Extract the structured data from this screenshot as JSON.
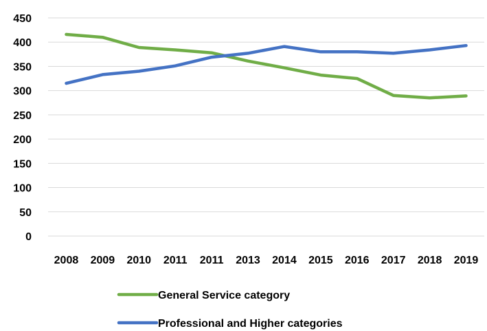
{
  "chart_data": {
    "type": "line",
    "categories": [
      "2008",
      "2009",
      "2010",
      "2011",
      "2011",
      "2013",
      "2014",
      "2015",
      "2016",
      "2017",
      "2018",
      "2019"
    ],
    "series": [
      {
        "name": "General Service category",
        "color": "#70ad47",
        "values": [
          416,
          410,
          389,
          384,
          378,
          361,
          347,
          332,
          325,
          290,
          285,
          289
        ]
      },
      {
        "name": "Professional and Higher categories",
        "color": "#4472c4",
        "values": [
          315,
          333,
          340,
          351,
          369,
          377,
          391,
          380,
          380,
          377,
          384,
          393
        ]
      }
    ],
    "y_ticks": [
      "0",
      "50",
      "100",
      "150",
      "200",
      "250",
      "300",
      "350",
      "400",
      "450"
    ],
    "ylim": [
      0,
      450
    ],
    "grid": true,
    "legend_position": "bottom"
  }
}
